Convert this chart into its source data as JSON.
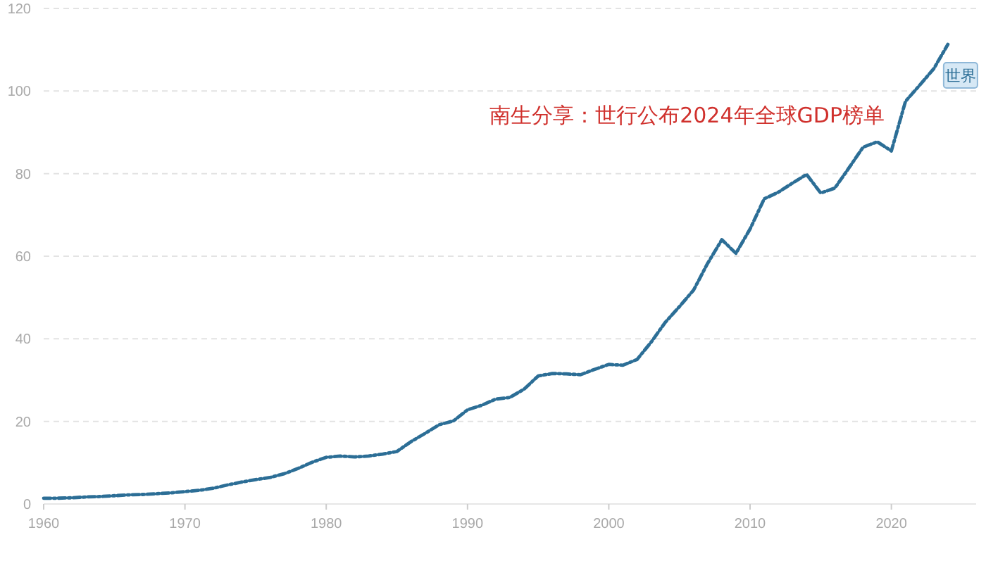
{
  "chart_data": {
    "type": "line",
    "title": "南生分享：世行公布2024年全球GDP榜单",
    "x": [
      1960,
      1961,
      1962,
      1963,
      1964,
      1965,
      1966,
      1967,
      1968,
      1969,
      1970,
      1971,
      1972,
      1973,
      1974,
      1975,
      1976,
      1977,
      1978,
      1979,
      1980,
      1981,
      1982,
      1983,
      1984,
      1985,
      1986,
      1987,
      1988,
      1989,
      1990,
      1991,
      1992,
      1993,
      1994,
      1995,
      1996,
      1997,
      1998,
      1999,
      2000,
      2001,
      2002,
      2003,
      2004,
      2005,
      2006,
      2007,
      2008,
      2009,
      2010,
      2011,
      2012,
      2013,
      2014,
      2015,
      2016,
      2017,
      2018,
      2019,
      2020,
      2021,
      2022,
      2023,
      2024
    ],
    "series": [
      {
        "name": "世界",
        "color": "#2c6e96",
        "values": [
          1.4,
          1.4,
          1.5,
          1.7,
          1.8,
          2,
          2.2,
          2.3,
          2.5,
          2.7,
          3,
          3.3,
          3.8,
          4.6,
          5.3,
          5.9,
          6.4,
          7.3,
          8.6,
          10.1,
          11.3,
          11.6,
          11.4,
          11.6,
          12.1,
          12.7,
          15.1,
          17.1,
          19.2,
          20.1,
          22.8,
          23.9,
          25.4,
          25.8,
          27.8,
          31,
          31.6,
          31.5,
          31.3,
          32.6,
          33.8,
          33.6,
          35,
          39.2,
          44,
          47.8,
          51.8,
          58.3,
          64,
          60.7,
          66.6,
          73.9,
          75.5,
          77.7,
          79.8,
          75.3,
          76.5,
          81.4,
          86.4,
          87.7,
          85.5,
          97.5,
          101.4,
          105.4,
          111.3
        ]
      }
    ],
    "xlim": [
      1960,
      2026
    ],
    "xticks": [
      1960,
      1970,
      1980,
      1990,
      2000,
      2010,
      2020
    ],
    "ylim": [
      0,
      120
    ],
    "yticks": [
      0,
      20,
      40,
      60,
      80,
      100,
      120
    ],
    "grid": "y",
    "line_style": "dashed",
    "marker": "none"
  }
}
